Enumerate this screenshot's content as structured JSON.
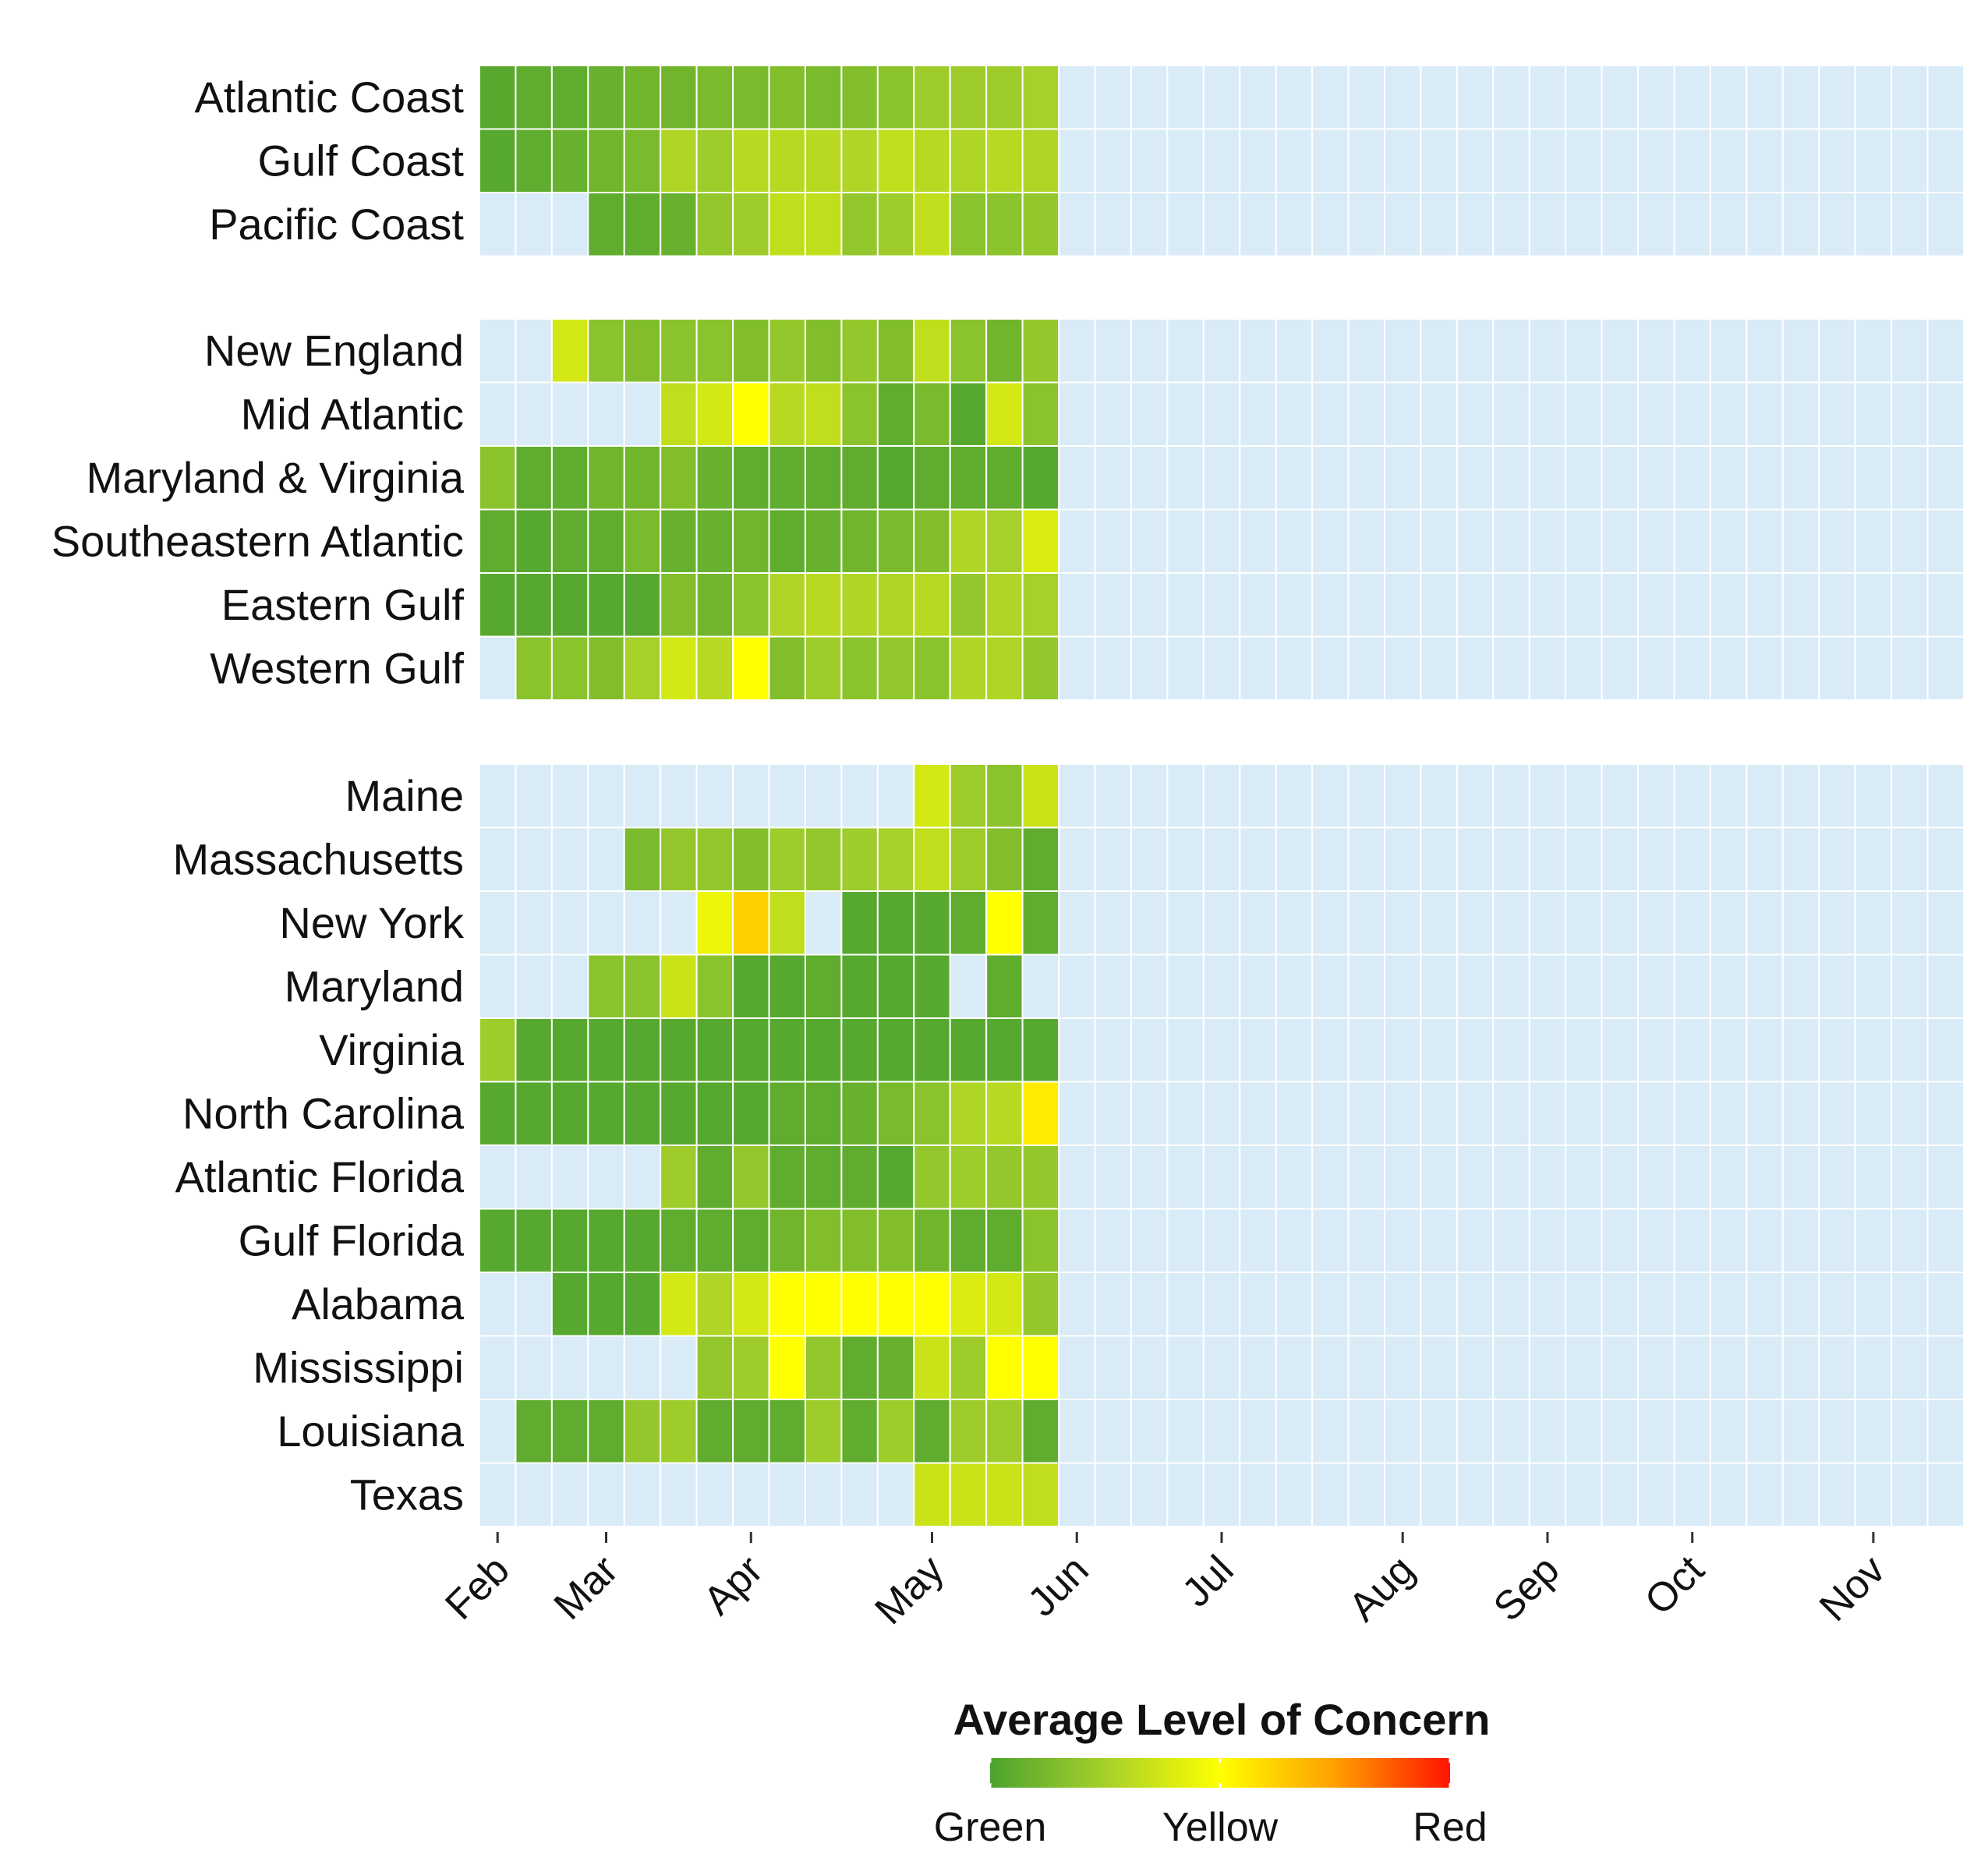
{
  "chart_data": {
    "type": "heatmap",
    "title": "",
    "xlabel": "",
    "ylabel": "",
    "x_axis": {
      "type": "week columns, Feb to Nov",
      "ticks": [
        "Feb",
        "Mar",
        "Apr",
        "May",
        "Jun",
        "Jul",
        "Aug",
        "Sep",
        "Oct",
        "Nov"
      ],
      "tick_week_index": [
        0.5,
        3.5,
        7.5,
        12.5,
        16.5,
        20.5,
        25.5,
        29.5,
        33.5,
        38.5
      ],
      "n_weeks": 41
    },
    "scale": {
      "name": "Average Level of Concern",
      "min": 0,
      "max": 2,
      "labels": [
        "Green",
        "Yellow",
        "Red"
      ],
      "label_values": [
        0,
        1,
        2
      ],
      "colors": [
        "#4da32f",
        "#a6d02a",
        "#ffff00",
        "#ff9f00",
        "#ff1500"
      ],
      "no_data_color": "#d9ebf7"
    },
    "note": "Values per week (Feb to early Jun); null = no data (light blue). All weeks after column 16 are no data.",
    "groups": [
      {
        "rows": [
          {
            "name": "Atlantic Coast",
            "values": [
              0.06,
              0.1,
              0.1,
              0.15,
              0.2,
              0.2,
              0.25,
              0.25,
              0.3,
              0.25,
              0.3,
              0.35,
              0.45,
              0.45,
              0.45,
              0.5
            ]
          },
          {
            "name": "Gulf Coast",
            "values": [
              0.05,
              0.1,
              0.15,
              0.2,
              0.25,
              0.55,
              0.45,
              0.6,
              0.6,
              0.6,
              0.55,
              0.65,
              0.6,
              0.55,
              0.6,
              0.55
            ]
          },
          {
            "name": "Pacific Coast",
            "values": [
              null,
              null,
              null,
              0.1,
              0.1,
              0.15,
              0.4,
              0.45,
              0.65,
              0.65,
              0.4,
              0.45,
              0.65,
              0.35,
              0.35,
              0.4
            ]
          }
        ]
      },
      {
        "rows": [
          {
            "name": "New England",
            "values": [
              null,
              null,
              0.75,
              0.35,
              0.3,
              0.35,
              0.35,
              0.3,
              0.4,
              0.3,
              0.4,
              0.3,
              0.65,
              0.35,
              0.2,
              0.4
            ]
          },
          {
            "name": "Mid Atlantic",
            "values": [
              null,
              null,
              null,
              null,
              null,
              0.65,
              0.75,
              1.0,
              0.6,
              0.65,
              0.35,
              0.1,
              0.25,
              0.05,
              0.75,
              0.35
            ]
          },
          {
            "name": "Maryland & Virginia",
            "values": [
              0.35,
              0.1,
              0.1,
              0.2,
              0.2,
              0.3,
              0.15,
              0.1,
              0.1,
              0.1,
              0.1,
              0.05,
              0.1,
              0.1,
              0.1,
              0.05
            ]
          },
          {
            "name": "Southeastern Atlantic",
            "values": [
              0.1,
              0.05,
              0.1,
              0.1,
              0.25,
              0.15,
              0.15,
              0.2,
              0.1,
              0.15,
              0.2,
              0.25,
              0.3,
              0.55,
              0.5,
              0.8
            ]
          },
          {
            "name": "Eastern Gulf",
            "values": [
              0.05,
              0.05,
              0.05,
              0.05,
              0.05,
              0.3,
              0.2,
              0.35,
              0.55,
              0.6,
              0.55,
              0.55,
              0.6,
              0.4,
              0.55,
              0.5
            ]
          },
          {
            "name": "Western Gulf",
            "values": [
              null,
              0.35,
              0.35,
              0.3,
              0.5,
              0.75,
              0.6,
              1.0,
              0.3,
              0.45,
              0.35,
              0.4,
              0.35,
              0.55,
              0.55,
              0.4
            ]
          }
        ]
      },
      {
        "rows": [
          {
            "name": "Maine",
            "values": [
              null,
              null,
              null,
              null,
              null,
              null,
              null,
              null,
              null,
              null,
              null,
              null,
              0.75,
              0.45,
              0.35,
              0.7
            ]
          },
          {
            "name": "Massachusetts",
            "values": [
              null,
              null,
              null,
              null,
              0.25,
              0.4,
              0.4,
              0.3,
              0.45,
              0.4,
              0.45,
              0.5,
              0.65,
              0.45,
              0.3,
              0.1
            ]
          },
          {
            "name": "New York",
            "values": [
              null,
              null,
              null,
              null,
              null,
              null,
              0.9,
              1.25,
              0.65,
              null,
              0.05,
              0.05,
              0.05,
              0.1,
              1.0,
              0.1
            ]
          },
          {
            "name": "Maryland",
            "values": [
              null,
              null,
              null,
              0.35,
              0.35,
              0.7,
              0.35,
              0.05,
              0.05,
              0.1,
              0.05,
              0.05,
              0.05,
              null,
              0.1,
              null
            ]
          },
          {
            "name": "Virginia",
            "values": [
              0.45,
              0.05,
              0.05,
              0.05,
              0.05,
              0.05,
              0.05,
              0.05,
              0.05,
              0.05,
              0.05,
              0.05,
              0.05,
              0.05,
              0.05,
              0.05
            ]
          },
          {
            "name": "North Carolina",
            "values": [
              0.05,
              0.05,
              0.05,
              0.05,
              0.05,
              0.05,
              0.05,
              0.05,
              0.1,
              0.1,
              0.15,
              0.25,
              0.35,
              0.55,
              0.6,
              1.1
            ]
          },
          {
            "name": "Atlantic Florida",
            "values": [
              null,
              null,
              null,
              null,
              null,
              0.45,
              0.1,
              0.4,
              0.1,
              0.1,
              0.1,
              0.05,
              0.4,
              0.45,
              0.4,
              0.4
            ]
          },
          {
            "name": "Gulf Florida",
            "values": [
              0.05,
              0.05,
              0.05,
              0.05,
              0.05,
              0.1,
              0.1,
              0.1,
              0.2,
              0.3,
              0.3,
              0.3,
              0.2,
              0.1,
              0.1,
              0.35
            ]
          },
          {
            "name": "Alabama",
            "values": [
              null,
              null,
              0.05,
              0.05,
              0.05,
              0.75,
              0.55,
              0.75,
              1.0,
              1.0,
              1.0,
              1.0,
              1.0,
              0.8,
              0.75,
              0.4
            ]
          },
          {
            "name": "Mississippi",
            "values": [
              null,
              null,
              null,
              null,
              null,
              null,
              0.4,
              0.45,
              1.0,
              0.4,
              0.1,
              0.15,
              0.7,
              0.45,
              1.0,
              1.0
            ]
          },
          {
            "name": "Louisiana",
            "values": [
              null,
              0.1,
              0.1,
              0.1,
              0.4,
              0.45,
              0.1,
              0.1,
              0.1,
              0.45,
              0.1,
              0.45,
              0.1,
              0.45,
              0.45,
              0.1
            ]
          },
          {
            "name": "Texas",
            "values": [
              null,
              null,
              null,
              null,
              null,
              null,
              null,
              null,
              null,
              null,
              null,
              null,
              0.7,
              0.7,
              0.7,
              0.65
            ]
          }
        ]
      }
    ]
  }
}
